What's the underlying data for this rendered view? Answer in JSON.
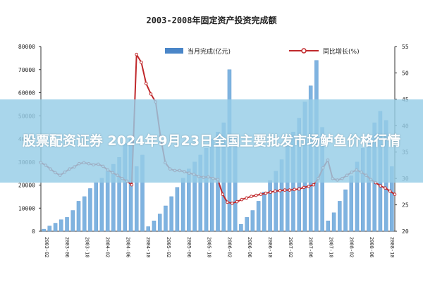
{
  "chart_data": {
    "type": "bar",
    "title": "2003-2008年固定资产投资完成额",
    "legend": {
      "bar_series": "当月完成(亿元)",
      "line_series": "同比增长(%)",
      "placement": "top"
    },
    "y_left": {
      "ticks": [
        "0",
        "10000",
        "20000",
        "30000",
        "40000",
        "50000",
        "60000",
        "70000",
        "80000"
      ],
      "range": [
        0,
        80000
      ]
    },
    "y_right": {
      "ticks": [
        "20",
        "25",
        "30",
        "35",
        "40",
        "45",
        "50",
        "55"
      ],
      "range": [
        20,
        55
      ]
    },
    "x_tick_labels": [
      "2003-02",
      "2003-06",
      "2003-10",
      "2004-02",
      "2004-06",
      "2004-10",
      "2005-02",
      "2005-06",
      "2005-10",
      "2006-02",
      "2006-06",
      "2006-10",
      "2007-02",
      "2007-06",
      "2007-10",
      "2008-02",
      "2008-06",
      "2008-10"
    ],
    "bars": [
      900,
      2300,
      3500,
      5000,
      6000,
      9000,
      13000,
      15000,
      18500,
      21000,
      23000,
      26000,
      29000,
      32000,
      38000,
      40000,
      28000,
      33000,
      2000,
      4500,
      7500,
      11000,
      15000,
      19000,
      23000,
      27000,
      30000,
      33000,
      36000,
      40000,
      43000,
      47000,
      70000,
      41000,
      3000,
      6000,
      9000,
      13000,
      17000,
      22000,
      26000,
      31000,
      37000,
      43000,
      49000,
      56000,
      63000,
      74000,
      45000,
      4500,
      8000,
      13000,
      18000,
      24000,
      30000,
      36000,
      41000,
      47000,
      52000,
      48000,
      28000
    ],
    "line": [
      33,
      32.5,
      31.8,
      31.1,
      30.6,
      31.2,
      31.8,
      32.2,
      32.8,
      33,
      32.8,
      32.6,
      32.7,
      32.3,
      31.6,
      31.1,
      30.6,
      30,
      29.5,
      28.8,
      53.5,
      52,
      48,
      46,
      44.5,
      38,
      33,
      31.8,
      31.5,
      31.5,
      31.3,
      31,
      30.8,
      30.4,
      30.2,
      30.3,
      30,
      29.8,
      27,
      25.5,
      25.3,
      25.6,
      26,
      26.3,
      26.6,
      26.8,
      27,
      27.2,
      27.4,
      27.6,
      27.7,
      27.8,
      27.8,
      27.9,
      28,
      28.3,
      28.5,
      28.8,
      30,
      32,
      33.5,
      30,
      29.7,
      30,
      30.6,
      31.2,
      31.6,
      31.2,
      30.6,
      29.8,
      29.2,
      28.6,
      28.2,
      27.6,
      27
    ]
  },
  "overlay": {
    "headline": "股票配资证券 2024年9月23日全国主要批发市场鲈鱼价格行情"
  }
}
